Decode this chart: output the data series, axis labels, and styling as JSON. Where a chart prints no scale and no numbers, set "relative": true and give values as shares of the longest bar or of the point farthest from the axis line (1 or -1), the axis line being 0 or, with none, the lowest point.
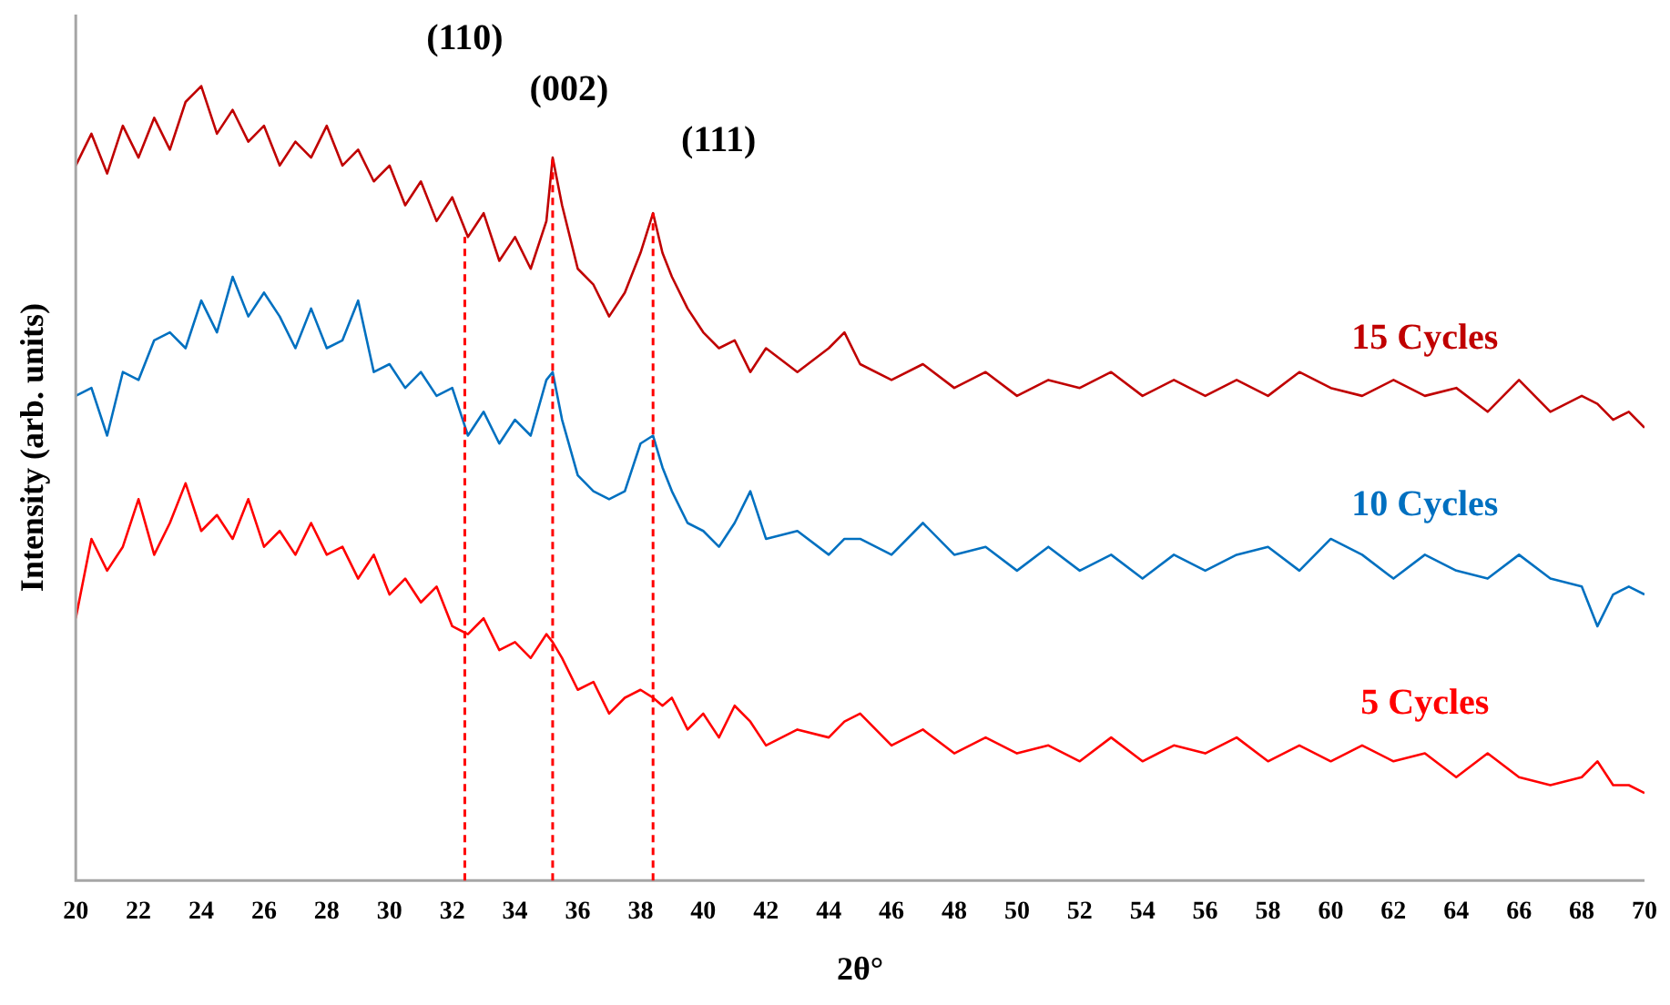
{
  "chart_data": {
    "type": "line",
    "xlabel": "2θ°",
    "ylabel": "Intensity (arb. units)",
    "relative": true,
    "xlim": [
      20,
      70
    ],
    "xticks": [
      20,
      22,
      24,
      26,
      28,
      30,
      32,
      34,
      36,
      38,
      40,
      42,
      44,
      46,
      48,
      50,
      52,
      54,
      56,
      58,
      60,
      62,
      64,
      66,
      68,
      70
    ],
    "grid": false,
    "legend": false,
    "marker": "none",
    "line_style": "solid",
    "x": [
      20,
      20.5,
      21,
      21.5,
      22,
      22.5,
      23,
      23.5,
      24,
      24.5,
      25,
      25.5,
      26,
      26.5,
      27,
      27.5,
      28,
      28.5,
      29,
      29.5,
      30,
      30.5,
      31,
      31.5,
      32,
      32.5,
      33,
      33.5,
      34,
      34.5,
      35,
      35.2,
      35.5,
      36,
      36.5,
      37,
      37.5,
      38,
      38.4,
      38.7,
      39,
      39.5,
      40,
      40.5,
      41,
      41.5,
      42,
      43,
      44,
      44.5,
      45,
      46,
      47,
      48,
      49,
      50,
      51,
      52,
      53,
      54,
      55,
      56,
      57,
      58,
      59,
      60,
      61,
      62,
      63,
      64,
      65,
      66,
      67,
      68,
      68.5,
      69,
      69.5,
      70
    ],
    "series": [
      {
        "name": "15 Cycles",
        "color": "#c00000",
        "values": [
          0.9,
          0.94,
          0.89,
          0.95,
          0.91,
          0.96,
          0.92,
          0.98,
          1.0,
          0.94,
          0.97,
          0.93,
          0.95,
          0.9,
          0.93,
          0.91,
          0.95,
          0.9,
          0.92,
          0.88,
          0.9,
          0.85,
          0.88,
          0.83,
          0.86,
          0.81,
          0.84,
          0.78,
          0.81,
          0.77,
          0.83,
          0.91,
          0.85,
          0.77,
          0.75,
          0.71,
          0.74,
          0.79,
          0.84,
          0.79,
          0.76,
          0.72,
          0.69,
          0.67,
          0.68,
          0.64,
          0.67,
          0.64,
          0.67,
          0.69,
          0.65,
          0.63,
          0.65,
          0.62,
          0.64,
          0.61,
          0.63,
          0.62,
          0.64,
          0.61,
          0.63,
          0.61,
          0.63,
          0.61,
          0.64,
          0.62,
          0.61,
          0.63,
          0.61,
          0.62,
          0.59,
          0.63,
          0.59,
          0.61,
          0.6,
          0.58,
          0.59,
          0.57
        ]
      },
      {
        "name": "10 Cycles",
        "color": "#0070c0",
        "values": [
          0.61,
          0.62,
          0.56,
          0.64,
          0.63,
          0.68,
          0.69,
          0.67,
          0.73,
          0.69,
          0.76,
          0.71,
          0.74,
          0.71,
          0.67,
          0.72,
          0.67,
          0.68,
          0.73,
          0.64,
          0.65,
          0.62,
          0.64,
          0.61,
          0.62,
          0.56,
          0.59,
          0.55,
          0.58,
          0.56,
          0.63,
          0.64,
          0.58,
          0.51,
          0.49,
          0.48,
          0.49,
          0.55,
          0.56,
          0.52,
          0.49,
          0.45,
          0.44,
          0.42,
          0.45,
          0.49,
          0.43,
          0.44,
          0.41,
          0.43,
          0.43,
          0.41,
          0.45,
          0.41,
          0.42,
          0.39,
          0.42,
          0.39,
          0.41,
          0.38,
          0.41,
          0.39,
          0.41,
          0.42,
          0.39,
          0.43,
          0.41,
          0.38,
          0.41,
          0.39,
          0.38,
          0.41,
          0.38,
          0.37,
          0.32,
          0.36,
          0.37,
          0.36
        ]
      },
      {
        "name": "5 Cycles",
        "color": "#ff0000",
        "values": [
          0.33,
          0.43,
          0.39,
          0.42,
          0.48,
          0.41,
          0.45,
          0.5,
          0.44,
          0.46,
          0.43,
          0.48,
          0.42,
          0.44,
          0.41,
          0.45,
          0.41,
          0.42,
          0.38,
          0.41,
          0.36,
          0.38,
          0.35,
          0.37,
          0.32,
          0.31,
          0.33,
          0.29,
          0.3,
          0.28,
          0.31,
          0.3,
          0.28,
          0.24,
          0.25,
          0.21,
          0.23,
          0.24,
          0.23,
          0.22,
          0.23,
          0.19,
          0.21,
          0.18,
          0.22,
          0.2,
          0.17,
          0.19,
          0.18,
          0.2,
          0.21,
          0.17,
          0.19,
          0.16,
          0.18,
          0.16,
          0.17,
          0.15,
          0.18,
          0.15,
          0.17,
          0.16,
          0.18,
          0.15,
          0.17,
          0.15,
          0.17,
          0.15,
          0.16,
          0.13,
          0.16,
          0.13,
          0.12,
          0.13,
          0.15,
          0.12,
          0.12,
          0.11
        ]
      }
    ],
    "annotations": [
      "(110)",
      "(002)",
      "(111)"
    ],
    "ref_lines": [
      {
        "axis": "x",
        "value": 32.4,
        "color": "#ff0000",
        "line_style": "dashed"
      },
      {
        "axis": "x",
        "value": 35.2,
        "color": "#ff0000",
        "line_style": "dashed"
      },
      {
        "axis": "x",
        "value": 38.4,
        "color": "#ff0000",
        "line_style": "dashed"
      }
    ]
  }
}
